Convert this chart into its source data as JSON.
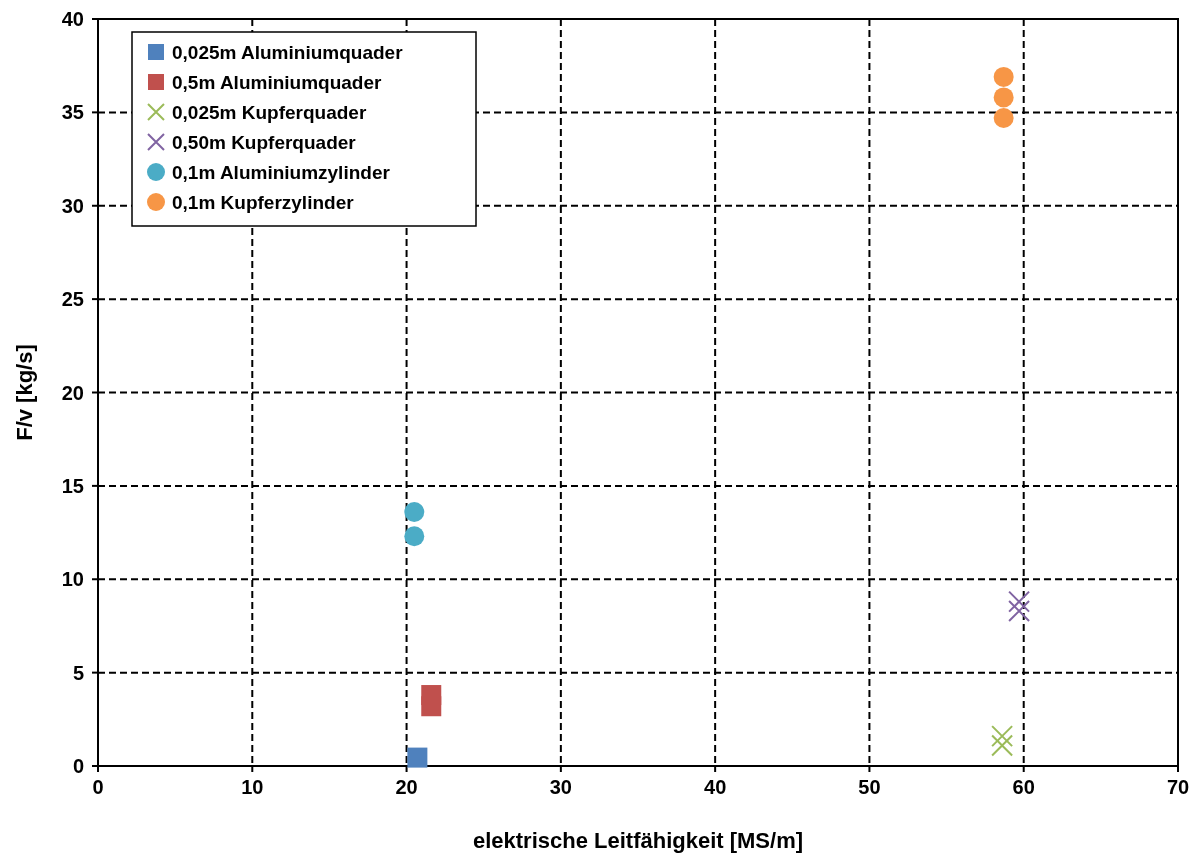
{
  "chart_data": {
    "type": "scatter",
    "xlabel": "elektrische Leitfähigkeit [MS/m]",
    "ylabel": "F/v [kg/s]",
    "xlim": [
      0,
      70
    ],
    "xticks": [
      0,
      10,
      20,
      30,
      40,
      50,
      60,
      70
    ],
    "ylim": [
      0,
      40
    ],
    "yticks": [
      0,
      5,
      10,
      15,
      20,
      25,
      30,
      35,
      40
    ],
    "grid": true,
    "legend": "top left",
    "series": [
      {
        "name": "0,025m Aluminiumquader",
        "color": "#4f81bd",
        "marker": "square",
        "x": [
          20.7
        ],
        "values": [
          0.45
        ]
      },
      {
        "name": "0,5m Aluminiumquader",
        "color": "#c0504d",
        "marker": "square",
        "x": [
          21.6,
          21.6
        ],
        "values": [
          3.2,
          3.8
        ]
      },
      {
        "name": "0,025m Kupferquader",
        "color": "#9bbb59",
        "marker": "cross",
        "x": [
          58.6,
          58.6
        ],
        "values": [
          1.1,
          1.6
        ]
      },
      {
        "name": "0,50m Kupferquader",
        "color": "#8064a2",
        "marker": "cross",
        "x": [
          59.7,
          59.7
        ],
        "values": [
          8.3,
          8.8
        ]
      },
      {
        "name": "0,1m Aluminiumzylinder",
        "color": "#4bacc6",
        "marker": "circle",
        "x": [
          20.5,
          20.5
        ],
        "values": [
          13.6,
          12.3
        ]
      },
      {
        "name": "0,1m Kupferzylinder",
        "color": "#f79646",
        "marker": "circle",
        "x": [
          58.7,
          58.7,
          58.7
        ],
        "values": [
          36.9,
          35.8,
          34.7
        ]
      }
    ]
  }
}
